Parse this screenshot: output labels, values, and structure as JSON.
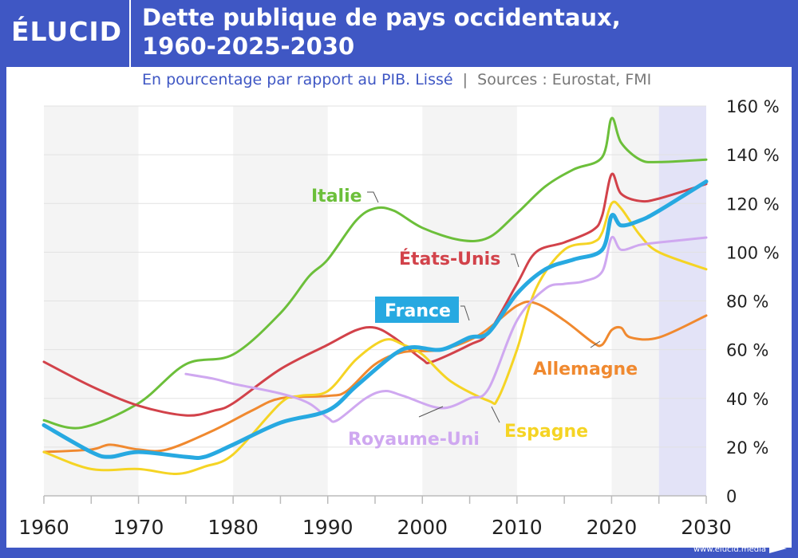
{
  "brand": "ÉLUCID",
  "title_line1": "Dette publique de pays occidentaux,",
  "title_line2": "1960-2025-2030",
  "subtitle": "En pourcentage par rapport au PIB. Lissé",
  "sources": "Sources : Eurostat, FMI",
  "footer_url": "www.elucid.media",
  "colors": {
    "frame": "#3f57c4",
    "band": "#f4f4f4",
    "projection_band": "#e3e3f7"
  },
  "chart_data": {
    "type": "line",
    "xlim": [
      1960,
      2030
    ],
    "ylim": [
      0,
      160
    ],
    "x_ticks": [
      1960,
      1970,
      1980,
      1990,
      2000,
      2010,
      2020,
      2030
    ],
    "y_ticks": [
      0,
      20,
      40,
      60,
      80,
      100,
      120,
      140,
      160
    ],
    "y_tick_labels": [
      "0",
      "20 %",
      "40 %",
      "60 %",
      "80 %",
      "100 %",
      "120 %",
      "140 %",
      "160 %"
    ],
    "grid": true,
    "projection_from": 2025,
    "series": [
      {
        "name": "Italie",
        "color": "#6cbf3a",
        "points": [
          [
            1960,
            31
          ],
          [
            1964,
            28
          ],
          [
            1970,
            38
          ],
          [
            1975,
            54
          ],
          [
            1980,
            58
          ],
          [
            1985,
            75
          ],
          [
            1988,
            90
          ],
          [
            1990,
            97
          ],
          [
            1993,
            113
          ],
          [
            1995,
            118
          ],
          [
            1997,
            117
          ],
          [
            2000,
            110
          ],
          [
            2004,
            105
          ],
          [
            2007,
            106
          ],
          [
            2010,
            116
          ],
          [
            2013,
            127
          ],
          [
            2016,
            134
          ],
          [
            2019,
            139
          ],
          [
            2020,
            155
          ],
          [
            2021,
            145
          ],
          [
            2023,
            138
          ],
          [
            2025,
            137
          ],
          [
            2030,
            138
          ]
        ]
      },
      {
        "name": "États-Unis",
        "color": "#d2424a",
        "points": [
          [
            1960,
            55
          ],
          [
            1965,
            45
          ],
          [
            1970,
            37
          ],
          [
            1975,
            33
          ],
          [
            1978,
            35
          ],
          [
            1980,
            38
          ],
          [
            1985,
            52
          ],
          [
            1990,
            62
          ],
          [
            1993,
            68
          ],
          [
            1995,
            69
          ],
          [
            1997,
            65
          ],
          [
            2000,
            56
          ],
          [
            2001,
            55
          ],
          [
            2005,
            62
          ],
          [
            2007,
            67
          ],
          [
            2010,
            87
          ],
          [
            2012,
            100
          ],
          [
            2015,
            104
          ],
          [
            2018,
            109
          ],
          [
            2019,
            115
          ],
          [
            2020,
            132
          ],
          [
            2021,
            124
          ],
          [
            2023,
            121
          ],
          [
            2025,
            122
          ],
          [
            2030,
            128
          ]
        ]
      },
      {
        "name": "Allemagne",
        "color": "#f0892f",
        "points": [
          [
            1960,
            18
          ],
          [
            1965,
            19
          ],
          [
            1967,
            21
          ],
          [
            1970,
            19
          ],
          [
            1973,
            19
          ],
          [
            1978,
            27
          ],
          [
            1982,
            35
          ],
          [
            1985,
            40
          ],
          [
            1990,
            41
          ],
          [
            1992,
            43
          ],
          [
            1995,
            54
          ],
          [
            1998,
            59
          ],
          [
            2002,
            60
          ],
          [
            2006,
            66
          ],
          [
            2010,
            78
          ],
          [
            2012,
            79
          ],
          [
            2015,
            72
          ],
          [
            2018,
            63
          ],
          [
            2019,
            62
          ],
          [
            2020,
            68
          ],
          [
            2021,
            69
          ],
          [
            2022,
            65
          ],
          [
            2025,
            65
          ],
          [
            2030,
            74
          ]
        ]
      },
      {
        "name": "Espagne",
        "color": "#f5d424",
        "points": [
          [
            1960,
            18
          ],
          [
            1965,
            11
          ],
          [
            1970,
            11
          ],
          [
            1974,
            9
          ],
          [
            1977,
            12
          ],
          [
            1980,
            17
          ],
          [
            1985,
            38
          ],
          [
            1987,
            41
          ],
          [
            1990,
            43
          ],
          [
            1993,
            56
          ],
          [
            1996,
            64
          ],
          [
            1998,
            62
          ],
          [
            2000,
            58
          ],
          [
            2003,
            47
          ],
          [
            2007,
            39
          ],
          [
            2008,
            40
          ],
          [
            2010,
            60
          ],
          [
            2012,
            85
          ],
          [
            2015,
            101
          ],
          [
            2018,
            104
          ],
          [
            2019,
            108
          ],
          [
            2020,
            120
          ],
          [
            2021,
            118
          ],
          [
            2023,
            107
          ],
          [
            2025,
            100
          ],
          [
            2030,
            93
          ]
        ]
      },
      {
        "name": "Royaume-Uni",
        "color": "#cfa8f0",
        "points": [
          [
            1975,
            50
          ],
          [
            1978,
            48
          ],
          [
            1980,
            46
          ],
          [
            1985,
            42
          ],
          [
            1988,
            38
          ],
          [
            1990,
            32
          ],
          [
            1991,
            31
          ],
          [
            1994,
            40
          ],
          [
            1996,
            43
          ],
          [
            1998,
            41
          ],
          [
            2002,
            36
          ],
          [
            2005,
            40
          ],
          [
            2007,
            44
          ],
          [
            2010,
            72
          ],
          [
            2013,
            85
          ],
          [
            2015,
            87
          ],
          [
            2017,
            88
          ],
          [
            2019,
            92
          ],
          [
            2020,
            106
          ],
          [
            2021,
            101
          ],
          [
            2023,
            103
          ],
          [
            2025,
            104
          ],
          [
            2030,
            106
          ]
        ]
      },
      {
        "name": "France",
        "color": "#27a9e1",
        "points": [
          [
            1960,
            29
          ],
          [
            1965,
            18
          ],
          [
            1967,
            16
          ],
          [
            1970,
            18
          ],
          [
            1975,
            16
          ],
          [
            1977,
            16
          ],
          [
            1980,
            21
          ],
          [
            1985,
            30
          ],
          [
            1990,
            35
          ],
          [
            1993,
            45
          ],
          [
            1997,
            58
          ],
          [
            1999,
            61
          ],
          [
            2002,
            60
          ],
          [
            2005,
            65
          ],
          [
            2007,
            67
          ],
          [
            2010,
            83
          ],
          [
            2013,
            93
          ],
          [
            2016,
            97
          ],
          [
            2019,
            101
          ],
          [
            2020,
            115
          ],
          [
            2021,
            111
          ],
          [
            2023,
            113
          ],
          [
            2025,
            117
          ],
          [
            2030,
            129
          ]
        ]
      }
    ]
  }
}
